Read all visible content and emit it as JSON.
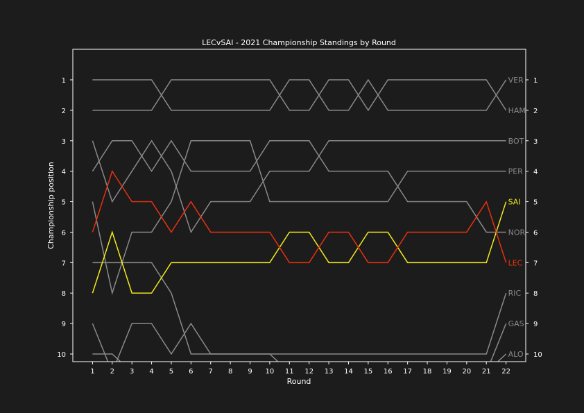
{
  "chart_data": {
    "type": "line",
    "title": "LECvSAI - 2021 Championship Standings by Round",
    "xlabel": "Round",
    "ylabel": "Championship position",
    "x": [
      1,
      2,
      3,
      4,
      5,
      6,
      7,
      8,
      9,
      10,
      11,
      12,
      13,
      14,
      15,
      16,
      17,
      18,
      19,
      20,
      21,
      22
    ],
    "xlim": [
      0,
      23
    ],
    "ylim": [
      10.25,
      0
    ],
    "y_ticks": [
      1,
      2,
      3,
      4,
      5,
      6,
      7,
      8,
      9,
      10
    ],
    "y_inverted": true,
    "right_axis_labels": [
      "1",
      "2",
      "3",
      "4",
      "5",
      "6",
      "7",
      "8",
      "9",
      "10"
    ],
    "grid": false,
    "colors": {
      "background": "#1c1c1c",
      "axes": "#ffffff",
      "text": "#ffffff",
      "other": "#8a8a8a",
      "LEC": "#e8300f",
      "SAI": "#f2ea1c"
    },
    "series": [
      {
        "name": "VER",
        "color": "#8a8a8a",
        "values": [
          1,
          1,
          1,
          1,
          2,
          2,
          2,
          2,
          2,
          2,
          1,
          1,
          2,
          2,
          1,
          2,
          2,
          2,
          2,
          2,
          2,
          1
        ]
      },
      {
        "name": "HAM",
        "color": "#8a8a8a",
        "values": [
          2,
          2,
          2,
          2,
          1,
          1,
          1,
          1,
          1,
          1,
          2,
          2,
          1,
          1,
          2,
          1,
          1,
          1,
          1,
          1,
          1,
          2
        ]
      },
      {
        "name": "BOT",
        "color": "#8a8a8a",
        "values": [
          3,
          5,
          4,
          3,
          4,
          6,
          5,
          5,
          5,
          4,
          4,
          4,
          3,
          3,
          3,
          3,
          3,
          3,
          3,
          3,
          3,
          3
        ]
      },
      {
        "name": "PER",
        "color": "#8a8a8a",
        "values": [
          5,
          8,
          6,
          6,
          5,
          3,
          3,
          3,
          3,
          5,
          5,
          5,
          5,
          5,
          5,
          5,
          4,
          4,
          4,
          4,
          4,
          4
        ]
      },
      {
        "name": "SAI",
        "color": "#f2ea1c",
        "values": [
          8,
          6,
          8,
          8,
          7,
          7,
          7,
          7,
          7,
          7,
          6,
          6,
          7,
          7,
          6,
          6,
          7,
          7,
          7,
          7,
          7,
          5
        ]
      },
      {
        "name": "NOR",
        "color": "#8a8a8a",
        "values": [
          4,
          3,
          3,
          4,
          3,
          4,
          4,
          4,
          4,
          3,
          3,
          3,
          4,
          4,
          4,
          4,
          5,
          5,
          5,
          5,
          6,
          6
        ]
      },
      {
        "name": "LEC",
        "color": "#e8300f",
        "values": [
          6,
          4,
          5,
          5,
          6,
          5,
          6,
          6,
          6,
          6,
          7,
          7,
          6,
          6,
          7,
          7,
          6,
          6,
          6,
          6,
          5,
          7
        ]
      },
      {
        "name": "RIC",
        "color": "#8a8a8a",
        "values": [
          7,
          7,
          7,
          7,
          8,
          10,
          10,
          10,
          10,
          10,
          10,
          10,
          10,
          10,
          10,
          10,
          10,
          10,
          10,
          10,
          10,
          8
        ]
      },
      {
        "name": "GAS",
        "color": "#8a8a8a",
        "values": [
          9,
          10.6,
          9,
          9,
          10,
          9,
          10,
          10,
          10,
          10,
          10.6,
          10.6,
          10.6,
          10.6,
          10.6,
          10.6,
          10.6,
          10.6,
          10.6,
          10.6,
          10.6,
          9
        ]
      },
      {
        "name": "ALO",
        "color": "#8a8a8a",
        "values": [
          10,
          10,
          10.6,
          10.6,
          10.6,
          10.6,
          10.6,
          10.6,
          10.6,
          10.6,
          10.6,
          10.6,
          10.6,
          10.6,
          10.6,
          10.6,
          10.6,
          10.6,
          10.6,
          10.6,
          10.6,
          10
        ]
      }
    ]
  }
}
